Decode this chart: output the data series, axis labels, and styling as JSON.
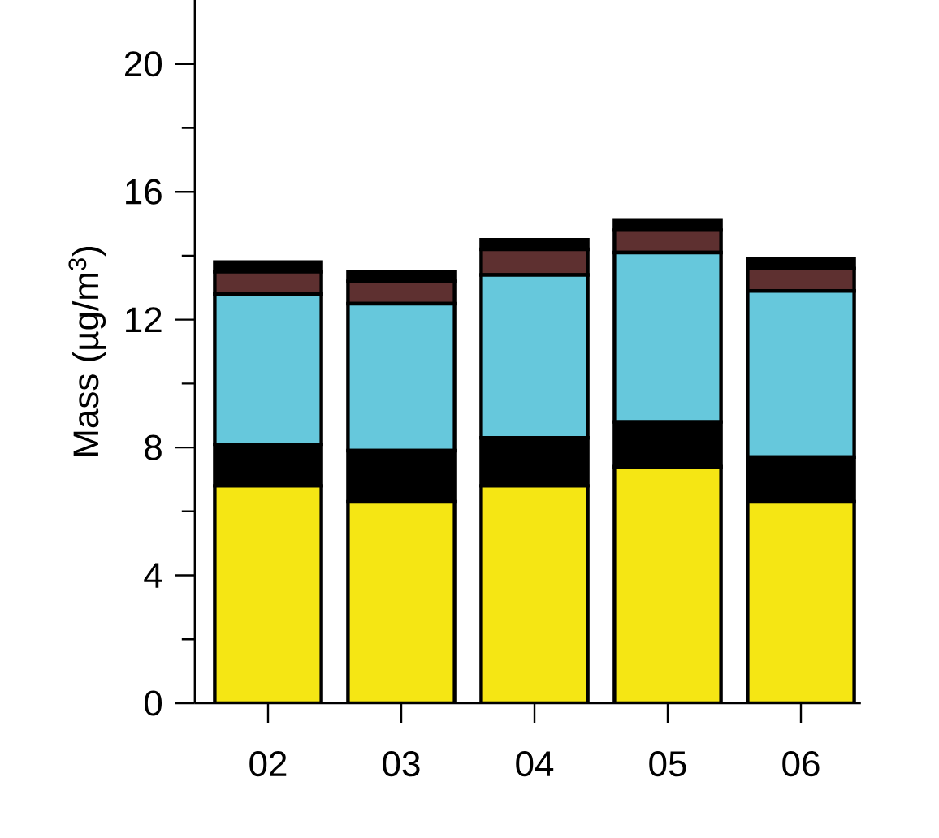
{
  "chart_data": {
    "type": "bar",
    "stacked": true,
    "ylabel": "Mass (µg/m$^{3}$)",
    "categories": [
      "02",
      "03",
      "04",
      "05",
      "06"
    ],
    "series": [
      {
        "color": "#f5e614",
        "values": [
          6.8,
          6.3,
          6.8,
          7.4,
          6.3
        ]
      },
      {
        "color": "#000000",
        "values": [
          1.3,
          1.6,
          1.5,
          1.4,
          1.4
        ]
      },
      {
        "color": "#66c8dc",
        "values": [
          4.7,
          4.6,
          5.1,
          5.3,
          5.2
        ]
      },
      {
        "color": "#5e3030",
        "values": [
          0.7,
          0.7,
          0.8,
          0.7,
          0.7
        ]
      },
      {
        "color": "#000000",
        "values": [
          0.3,
          0.3,
          0.3,
          0.3,
          0.3
        ]
      }
    ],
    "ylim": [
      0,
      22
    ],
    "yticks": [
      0,
      {
        "value": 2,
        "label": null
      },
      4,
      {
        "value": 6,
        "label": null
      },
      8,
      {
        "value": 10,
        "label": null
      },
      12,
      {
        "value": 14,
        "label": null
      },
      16,
      {
        "value": 18,
        "label": null
      },
      20
    ]
  }
}
